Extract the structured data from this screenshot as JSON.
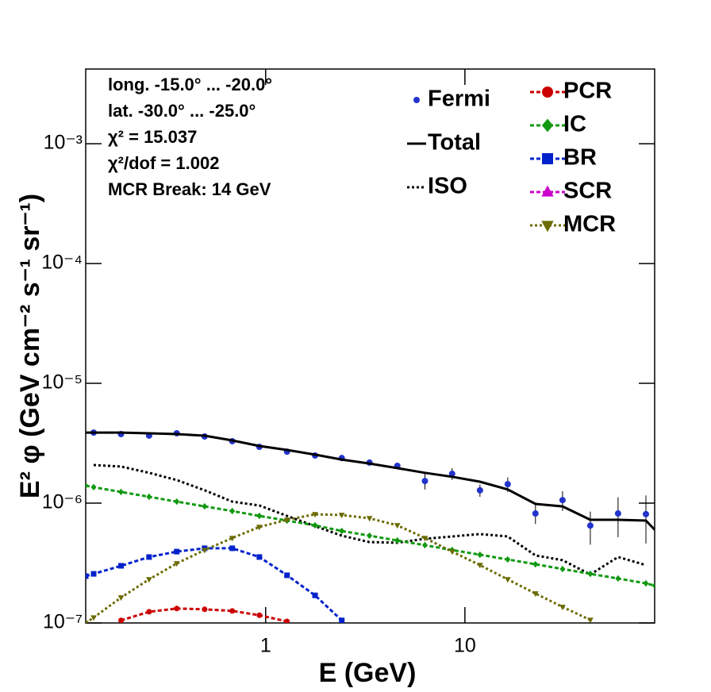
{
  "chart_data": {
    "type": "line",
    "xscale": "log",
    "yscale": "log",
    "xlabel": "E (GeV)",
    "ylabel": "E² φ (GeV cm⁻² s⁻¹ sr⁻¹)",
    "xlim": [
      0.125,
      89.6
    ],
    "ylim": [
      1e-07,
      0.0042
    ],
    "xticks": [
      1,
      10
    ],
    "yticks": [
      {
        "value": 1e-07,
        "label": "10⁻⁷"
      },
      {
        "value": 1e-06,
        "label": "10⁻⁶"
      },
      {
        "value": 1e-05,
        "label": "10⁻⁵"
      },
      {
        "value": 0.0001,
        "label": "10⁻⁴"
      },
      {
        "value": 0.001,
        "label": "10⁻³"
      }
    ],
    "annotations": [
      "long. -15.0° ... -20.0°",
      "lat. -30.0° ... -25.0°",
      "χ² = 15.037",
      "χ²/dof = 1.002",
      "MCR Break: 14 GeV"
    ],
    "x": [
      0.125,
      0.137,
      0.188,
      0.26,
      0.358,
      0.494,
      0.68,
      0.93,
      1.28,
      1.77,
      2.41,
      3.32,
      4.58,
      6.3,
      8.63,
      11.9,
      16.4,
      22.6,
      30.9,
      42.6,
      58.7,
      81,
      89.6
    ],
    "series": [
      {
        "name": "Fermi",
        "color": "#2233cc",
        "marker": "circle",
        "line": "none",
        "values": [
          null,
          3.88e-06,
          3.77e-06,
          3.66e-06,
          3.83e-06,
          3.6e-06,
          3.29e-06,
          2.95e-06,
          2.69e-06,
          2.5e-06,
          2.38e-06,
          2.18e-06,
          2.05e-06,
          1.53e-06,
          1.76e-06,
          1.28e-06,
          1.44e-06,
          8.2e-07,
          1.06e-06,
          6.5e-07,
          8.2e-07,
          8.1e-07,
          null
        ],
        "errors": [
          null,
          1e-07,
          1e-07,
          1e-07,
          1e-07,
          1e-07,
          1e-07,
          8e-08,
          8e-08,
          8e-08,
          8e-08,
          8e-08,
          1e-07,
          2.3e-07,
          2e-07,
          1.5e-07,
          2e-07,
          1.5e-07,
          2e-07,
          2e-07,
          3e-07,
          3.5e-07,
          null
        ]
      },
      {
        "name": "Total",
        "color": "#000000",
        "marker": "none",
        "line": "solid",
        "values": [
          3.88e-06,
          3.88e-06,
          3.88e-06,
          3.83e-06,
          3.77e-06,
          3.66e-06,
          3.34e-06,
          3e-06,
          2.78e-06,
          2.54e-06,
          2.31e-06,
          2.14e-06,
          1.96e-06,
          1.79e-06,
          1.66e-06,
          1.51e-06,
          1.3e-06,
          9.85e-07,
          9.4e-07,
          7.26e-07,
          7.26e-07,
          7.15e-07,
          6e-07
        ]
      },
      {
        "name": "ISO",
        "color": "#000000",
        "marker": "none",
        "line": "dotted",
        "values": [
          null,
          2.08e-06,
          2.02e-06,
          1.79e-06,
          1.56e-06,
          1.28e-06,
          1.03e-06,
          9.55e-07,
          7.83e-07,
          6.43e-07,
          5.35e-07,
          4.73e-07,
          4.67e-07,
          5.04e-07,
          5.27e-07,
          5.52e-07,
          5.27e-07,
          3.66e-07,
          3.34e-07,
          2.54e-07,
          3.55e-07,
          3.04e-07,
          null
        ]
      },
      {
        "name": "PCR",
        "color": "#cc0000",
        "marker": "circle",
        "line": "dashed",
        "values": [
          null,
          null,
          1.05e-07,
          1.24e-07,
          1.32e-07,
          1.3e-07,
          1.26e-07,
          1.16e-07,
          1.03e-07,
          null,
          null,
          null,
          null,
          null,
          null,
          null,
          null,
          null,
          null,
          null,
          null,
          null,
          null
        ]
      },
      {
        "name": "IC",
        "color": "#119911",
        "marker": "diamond",
        "line": "dashed",
        "values": [
          1.4e-06,
          1.36e-06,
          1.24e-06,
          1.13e-06,
          1.03e-06,
          9.4e-07,
          8.59e-07,
          7.83e-07,
          7.15e-07,
          6.53e-07,
          5.86e-07,
          5.35e-07,
          4.88e-07,
          4.46e-07,
          4.06e-07,
          3.71e-07,
          3.39e-07,
          3.09e-07,
          2.82e-07,
          2.57e-07,
          2.35e-07,
          2.14e-07,
          2.05e-07
        ]
      },
      {
        "name": "BR",
        "color": "#0022cc",
        "marker": "square",
        "line": "dashed",
        "values": [
          2.46e-07,
          2.57e-07,
          3e-07,
          3.55e-07,
          3.94e-07,
          4.2e-07,
          4.2e-07,
          3.55e-07,
          2.5e-07,
          1.7e-07,
          1.05e-07,
          null,
          null,
          null,
          null,
          null,
          null,
          null,
          null,
          null,
          null,
          null,
          null
        ]
      },
      {
        "name": "SCR",
        "color": "#cc00cc",
        "marker": "triangle-up",
        "line": "dashed",
        "values": [
          null,
          null,
          null,
          null,
          null,
          null,
          null,
          null,
          null,
          null,
          null,
          null,
          null,
          null,
          null,
          null,
          null,
          null,
          null,
          null,
          null,
          null,
          null
        ]
      },
      {
        "name": "MCR",
        "color": "#6b6b00",
        "marker": "triangle-down",
        "line": "dotted",
        "values": [
          1e-07,
          1.11e-07,
          1.63e-07,
          2.31e-07,
          3.14e-07,
          4.06e-07,
          5.11e-07,
          6.33e-07,
          7.26e-07,
          8.07e-07,
          7.96e-07,
          7.48e-07,
          6.53e-07,
          5.11e-07,
          3.94e-07,
          3.04e-07,
          2.31e-07,
          1.76e-07,
          1.36e-07,
          1.06e-07,
          null,
          null,
          null
        ]
      }
    ]
  }
}
